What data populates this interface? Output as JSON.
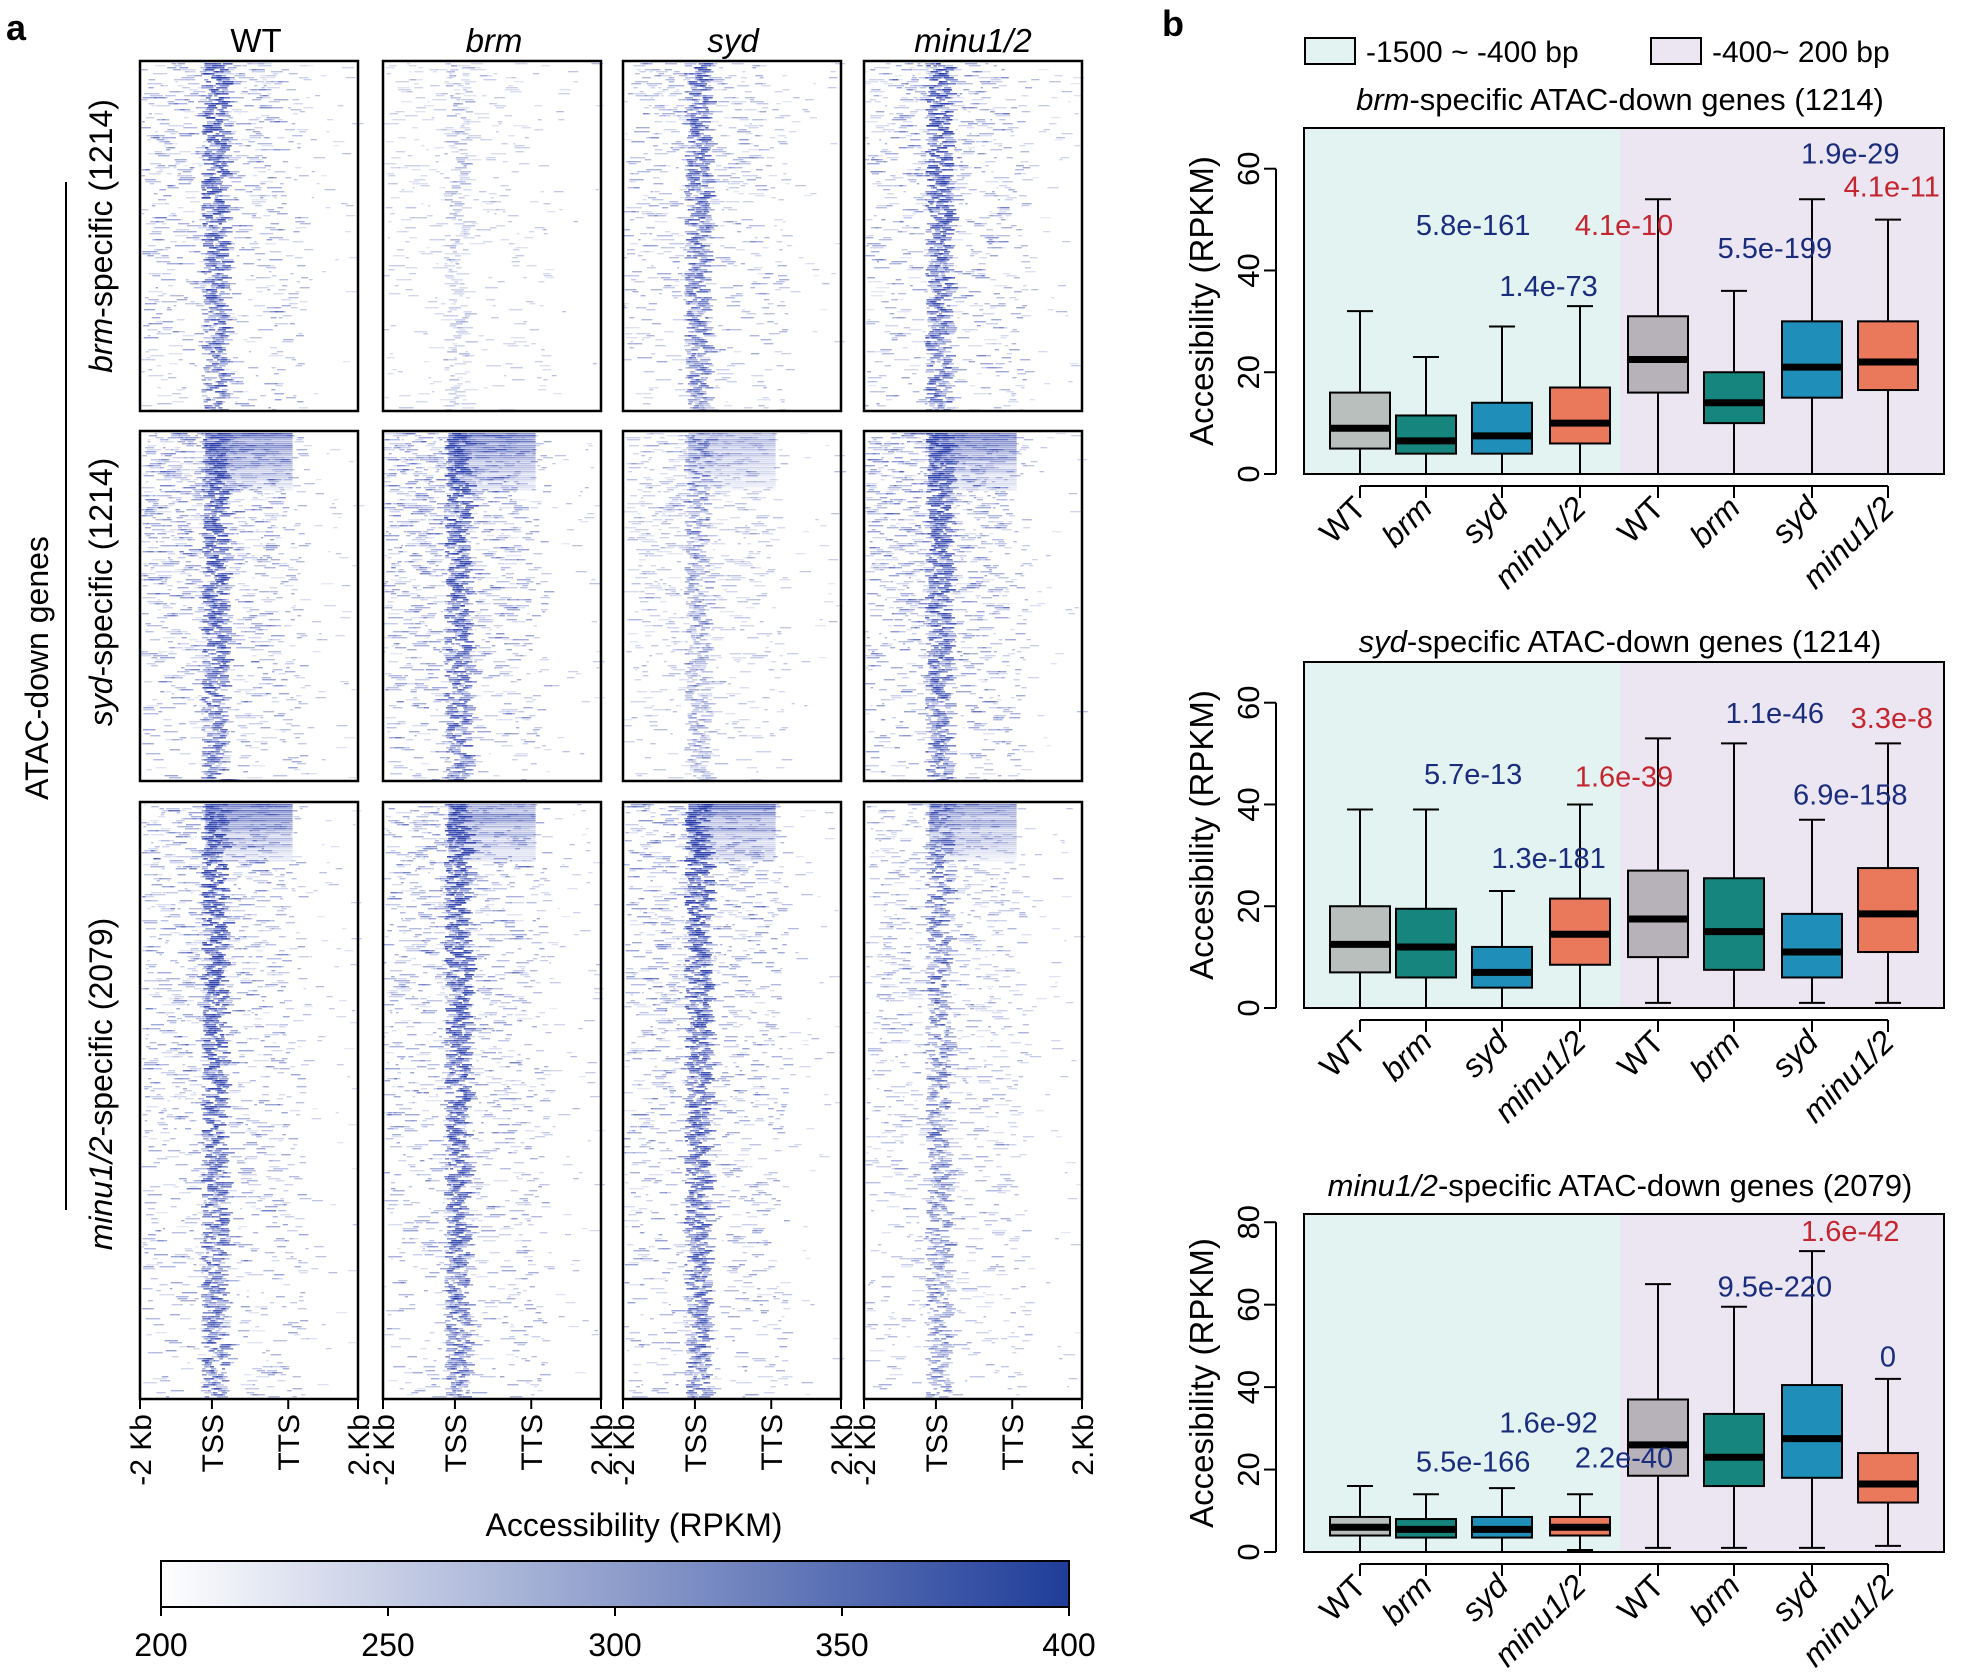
{
  "panel_a": {
    "label": "a",
    "columns": [
      "WT",
      "brm",
      "syd",
      "minu1/2"
    ],
    "outer_label": "ATAC-down genes",
    "rows": [
      {
        "name_it": "brm",
        "name_rest": "-specific (1214)"
      },
      {
        "name_it": "syd",
        "name_rest": "-specific (1214)"
      },
      {
        "name_it": "minu1/2",
        "name_rest": "-specific (2079)"
      }
    ],
    "x_ticks": [
      "-2 Kb",
      "TSS",
      "TTS",
      "2.Kb"
    ],
    "colorbar": {
      "title": "Accessibility (RPKM)",
      "ticks": [
        "200",
        "250",
        "300",
        "350",
        "400"
      ],
      "color_low": "#ffffff",
      "color_high": "#1f3d99"
    },
    "heatmap_color": "#2438a8"
  },
  "panel_b": {
    "label": "b",
    "legend": [
      {
        "label": "-1500 ~ -400 bp",
        "color": "#e3f3f1"
      },
      {
        "label": "-400~ 200 bp",
        "color": "#ece6f3"
      }
    ]
  },
  "chart_data": [
    {
      "type": "box",
      "title_it": "brm",
      "title_rest": "-specific ATAC-down genes (1214)",
      "ylabel": "Accesibility (RPKM)",
      "ylim": [
        0,
        68
      ],
      "yticks": [
        0,
        20,
        40,
        60
      ],
      "regions": [
        "-1500 ~ -400 bp",
        "-400~ 200 bp"
      ],
      "categories": [
        "WT",
        "brm",
        "syd",
        "minu1/2",
        "WT",
        "brm",
        "syd",
        "minu1/2"
      ],
      "boxes": [
        {
          "min": 0,
          "q1": 5,
          "median": 9,
          "q3": 16,
          "max": 32,
          "color": "#b9bfbd"
        },
        {
          "min": 0,
          "q1": 4,
          "median": 6.5,
          "q3": 11.5,
          "max": 23,
          "color": "#15857d"
        },
        {
          "min": 0,
          "q1": 4,
          "median": 7.5,
          "q3": 14,
          "max": 29,
          "color": "#1f8fba"
        },
        {
          "min": 0,
          "q1": 6,
          "median": 10,
          "q3": 17,
          "max": 33,
          "color": "#e9795a"
        },
        {
          "min": 0,
          "q1": 16,
          "median": 22.5,
          "q3": 31,
          "max": 54,
          "color": "#b7b2ba"
        },
        {
          "min": 0,
          "q1": 10,
          "median": 14,
          "q3": 20,
          "max": 36,
          "color": "#15857d"
        },
        {
          "min": 0,
          "q1": 15,
          "median": 21,
          "q3": 30,
          "max": 54,
          "color": "#1f8fba"
        },
        {
          "min": 0,
          "q1": 16.5,
          "median": 22,
          "q3": 30,
          "max": 50,
          "color": "#e9795a"
        }
      ],
      "pvalues": [
        {
          "text": "5.8e-161",
          "box": 1.5,
          "y": 47,
          "color": "#1a2c7c"
        },
        {
          "text": "1.4e-73",
          "box": 2.5,
          "y": 35,
          "color": "#1a2c7c"
        },
        {
          "text": "4.1e-10",
          "box": 3.5,
          "y": 47,
          "color": "#c4252e"
        },
        {
          "text": "5.5e-199",
          "box": 5.5,
          "y": 42.5,
          "color": "#1a2c7c"
        },
        {
          "text": "1.9e-29",
          "box": 6.5,
          "y": 61,
          "color": "#1a2c7c"
        },
        {
          "text": "4.1e-11",
          "box": 7.05,
          "y": 54.5,
          "color": "#c4252e"
        }
      ]
    },
    {
      "type": "box",
      "title_it": "syd",
      "title_rest": "-specific ATAC-down genes (1214)",
      "ylabel": "Accesibility (RPKM)",
      "ylim": [
        0,
        68
      ],
      "yticks": [
        0,
        20,
        40,
        60
      ],
      "regions": [
        "-1500 ~ -400 bp",
        "-400~ 200 bp"
      ],
      "categories": [
        "WT",
        "brm",
        "syd",
        "minu1/2",
        "WT",
        "brm",
        "syd",
        "minu1/2"
      ],
      "boxes": [
        {
          "min": 0,
          "q1": 7,
          "median": 12.5,
          "q3": 20,
          "max": 39,
          "color": "#b9bfbd"
        },
        {
          "min": 0,
          "q1": 6,
          "median": 12,
          "q3": 19.5,
          "max": 39,
          "color": "#15857d"
        },
        {
          "min": 0,
          "q1": 4,
          "median": 7,
          "q3": 12,
          "max": 23,
          "color": "#1f8fba"
        },
        {
          "min": 0,
          "q1": 8.5,
          "median": 14.5,
          "q3": 21.5,
          "max": 40,
          "color": "#e9795a"
        },
        {
          "min": 1,
          "q1": 10,
          "median": 17.5,
          "q3": 27,
          "max": 53,
          "color": "#b7b2ba"
        },
        {
          "min": 0,
          "q1": 7.5,
          "median": 15,
          "q3": 25.5,
          "max": 52,
          "color": "#15857d"
        },
        {
          "min": 1,
          "q1": 6,
          "median": 11,
          "q3": 18.5,
          "max": 37,
          "color": "#1f8fba"
        },
        {
          "min": 1,
          "q1": 11,
          "median": 18.5,
          "q3": 27.5,
          "max": 52,
          "color": "#e9795a"
        }
      ],
      "pvalues": [
        {
          "text": "5.7e-13",
          "box": 1.5,
          "y": 44,
          "color": "#1a2c7c"
        },
        {
          "text": "1.3e-181",
          "box": 2.5,
          "y": 27.5,
          "color": "#1a2c7c"
        },
        {
          "text": "1.6e-39",
          "box": 3.5,
          "y": 43.5,
          "color": "#c4252e"
        },
        {
          "text": "1.1e-46",
          "box": 5.5,
          "y": 56,
          "color": "#1a2c7c"
        },
        {
          "text": "6.9e-158",
          "box": 6.5,
          "y": 40,
          "color": "#1a2c7c"
        },
        {
          "text": "3.3e-8",
          "box": 7.05,
          "y": 55,
          "color": "#c4252e"
        }
      ]
    },
    {
      "type": "box",
      "title_it": "minu1/2",
      "title_rest": "-specific ATAC-down genes (2079)",
      "ylabel": "Accesibility (RPKM)",
      "ylim": [
        0,
        82
      ],
      "yticks": [
        0,
        20,
        40,
        60,
        80
      ],
      "regions": [
        "-1500 ~ -400 bp",
        "-400~ 200 bp"
      ],
      "categories": [
        "WT",
        "brm",
        "syd",
        "minu1/2",
        "WT",
        "brm",
        "syd",
        "minu1/2"
      ],
      "boxes": [
        {
          "min": 0,
          "q1": 4,
          "median": 6,
          "q3": 8.5,
          "max": 16,
          "color": "#b9bfbd"
        },
        {
          "min": 0,
          "q1": 3.5,
          "median": 5.5,
          "q3": 8,
          "max": 14,
          "color": "#15857d"
        },
        {
          "min": 0,
          "q1": 3.5,
          "median": 5.5,
          "q3": 8.5,
          "max": 15.5,
          "color": "#1f8fba"
        },
        {
          "min": 0.5,
          "q1": 4,
          "median": 6,
          "q3": 8.5,
          "max": 14,
          "color": "#e9795a"
        },
        {
          "min": 1,
          "q1": 18.5,
          "median": 26,
          "q3": 37,
          "max": 65,
          "color": "#b7b2ba"
        },
        {
          "min": 1,
          "q1": 16,
          "median": 23,
          "q3": 33.5,
          "max": 59.5,
          "color": "#15857d"
        },
        {
          "min": 1,
          "q1": 18,
          "median": 27.5,
          "q3": 40.5,
          "max": 73,
          "color": "#1f8fba"
        },
        {
          "min": 1.5,
          "q1": 12,
          "median": 16.5,
          "q3": 24,
          "max": 42,
          "color": "#e9795a"
        }
      ],
      "pvalues": [
        {
          "text": "5.5e-166",
          "box": 1.5,
          "y": 19.5,
          "color": "#1a2c7c"
        },
        {
          "text": "1.6e-92",
          "box": 2.5,
          "y": 29,
          "color": "#1a2c7c"
        },
        {
          "text": "2.2e-40",
          "box": 3.5,
          "y": 20.5,
          "color": "#1a2c7c"
        },
        {
          "text": "9.5e-220",
          "box": 5.5,
          "y": 62,
          "color": "#1a2c7c"
        },
        {
          "text": "1.6e-42",
          "box": 6.5,
          "y": 75.5,
          "color": "#c4252e"
        },
        {
          "text": "0",
          "box": 7,
          "y": 45,
          "color": "#1a2c7c"
        }
      ]
    }
  ]
}
